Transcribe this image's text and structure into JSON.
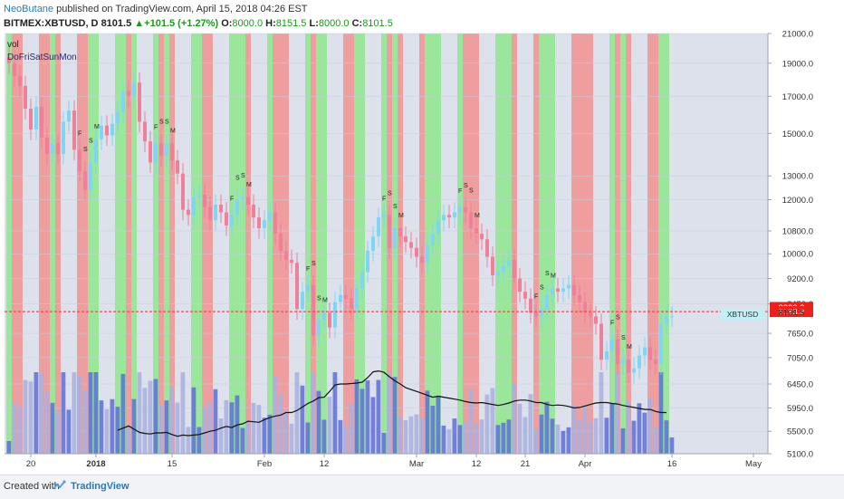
{
  "header": {
    "author": "NeoButane",
    "published": " published on TradingView.com, April 15, 2018 04:26 EST",
    "symbol": "BITMEX:XBTUSD, D",
    "last": "8101.5",
    "change": "+101.5 (+1.27%)",
    "o_label": "O:",
    "o_value": "8000.0",
    "h_label": "H:",
    "h_value": "8151.5",
    "l_label": "L:",
    "l_value": "8000.0",
    "c_label": "C:",
    "c_value": "8101.5"
  },
  "legend": {
    "vol": "vol",
    "indicator": "DoFriSatSunMon"
  },
  "footer": {
    "created_with": "Created with",
    "brand": "TradingView"
  },
  "colors": {
    "up": "#7fd6f2",
    "down": "#f07f9a",
    "green_band": "#96e696",
    "red_band": "#ee9a9a",
    "bg": "#dde1ec",
    "price_line": "#e05050",
    "vol_up": "#5d6fd8",
    "vol_down": "#a8b0e0"
  },
  "chart_data": {
    "type": "candlestick",
    "symbol": "BITMEX:XBTUSD",
    "interval": "D",
    "ylim": [
      5100,
      21000
    ],
    "y_scale": "log",
    "y_ticks": [
      "21000.0",
      "19000.0",
      "17000.0",
      "15000.0",
      "13000.0",
      "12000.0",
      "10800.0",
      "10000.0",
      "9200.0",
      "8450.0",
      "7650.0",
      "7050.0",
      "6450.0",
      "5950.0",
      "5500.0",
      "5100.0"
    ],
    "x_ticks": [
      "20",
      "2018",
      "15",
      "Feb",
      "12",
      "Mar",
      "12",
      "21",
      "Apr",
      "16",
      "May"
    ],
    "price_labels": [
      {
        "text": "8229.9",
        "kind": "red"
      },
      {
        "text": "8183.8",
        "kind": "red"
      },
      {
        "text": "8101.5",
        "kind": "plain"
      }
    ],
    "symbol_tag": "XBTUSD",
    "marker_letters": [
      "F",
      "S",
      "S",
      "M"
    ],
    "series": {
      "close": [
        19000,
        18200,
        17600,
        16300,
        15200,
        16400,
        14800,
        14000,
        14500,
        14000,
        15600,
        16200,
        14200,
        13200,
        12400,
        13600,
        14700,
        15400,
        14900,
        15500,
        16100,
        17300,
        17000,
        17800,
        15600,
        14600,
        13600,
        14500,
        13900,
        14500,
        13700,
        13100,
        11600,
        11400,
        12100,
        12200,
        11700,
        11200,
        11800,
        11500,
        11000,
        11400,
        12000,
        12100,
        11800,
        11300,
        10900,
        11200,
        11500,
        10700,
        10100,
        9800,
        9700,
        8300,
        8800,
        9000,
        7600,
        8000,
        8200,
        7800,
        8500,
        8700,
        8600,
        8300,
        8900,
        9400,
        10100,
        10600,
        11300,
        11400,
        10200,
        10900,
        10600,
        10400,
        10200,
        9900,
        9700,
        10300,
        10700,
        11200,
        11400,
        11300,
        11500,
        11700,
        11500,
        10900,
        10700,
        10500,
        9900,
        9300,
        9400,
        9600,
        9800,
        9200,
        8800,
        8600,
        8200,
        8100,
        8300,
        8700,
        8900,
        8800,
        8900,
        9000,
        8700,
        8500,
        8200,
        8100,
        7900,
        7000,
        7200,
        7500,
        6900,
        7000,
        6700,
        6800,
        7100,
        7300,
        7000,
        6900,
        7900,
        8100,
        8100
      ]
    },
    "volume_mean": {
      "name": "",
      "points": [
        5520,
        5560,
        5600,
        5540,
        5480,
        5460,
        5450,
        5470,
        5470,
        5480,
        5440,
        5410,
        5430,
        5420,
        5430,
        5440,
        5470,
        5500,
        5520,
        5560,
        5590,
        5570,
        5620,
        5640,
        5690,
        5680,
        5670,
        5720,
        5760,
        5790,
        5810,
        5860,
        5860,
        5900,
        5970,
        6040,
        6090,
        6160,
        6170,
        6290,
        6430,
        6450,
        6450,
        6460,
        6470,
        6490,
        6590,
        6720,
        6740,
        6710,
        6610,
        6520,
        6450,
        6370,
        6330,
        6290,
        6250,
        6210,
        6170,
        6190,
        6170,
        6150,
        6130,
        6110,
        6080,
        6060,
        6050,
        6060,
        6040,
        6020,
        6000,
        6020,
        6050,
        6090,
        6110,
        6110,
        6090,
        6060,
        6060,
        6020,
        6000,
        6010,
        6000,
        5980,
        5950,
        5960,
        5990,
        6020,
        6050,
        6060,
        6060,
        6040,
        6030,
        6000,
        5980,
        5960,
        5940,
        5920,
        5920,
        5880,
        5860,
        5860
      ]
    }
  }
}
